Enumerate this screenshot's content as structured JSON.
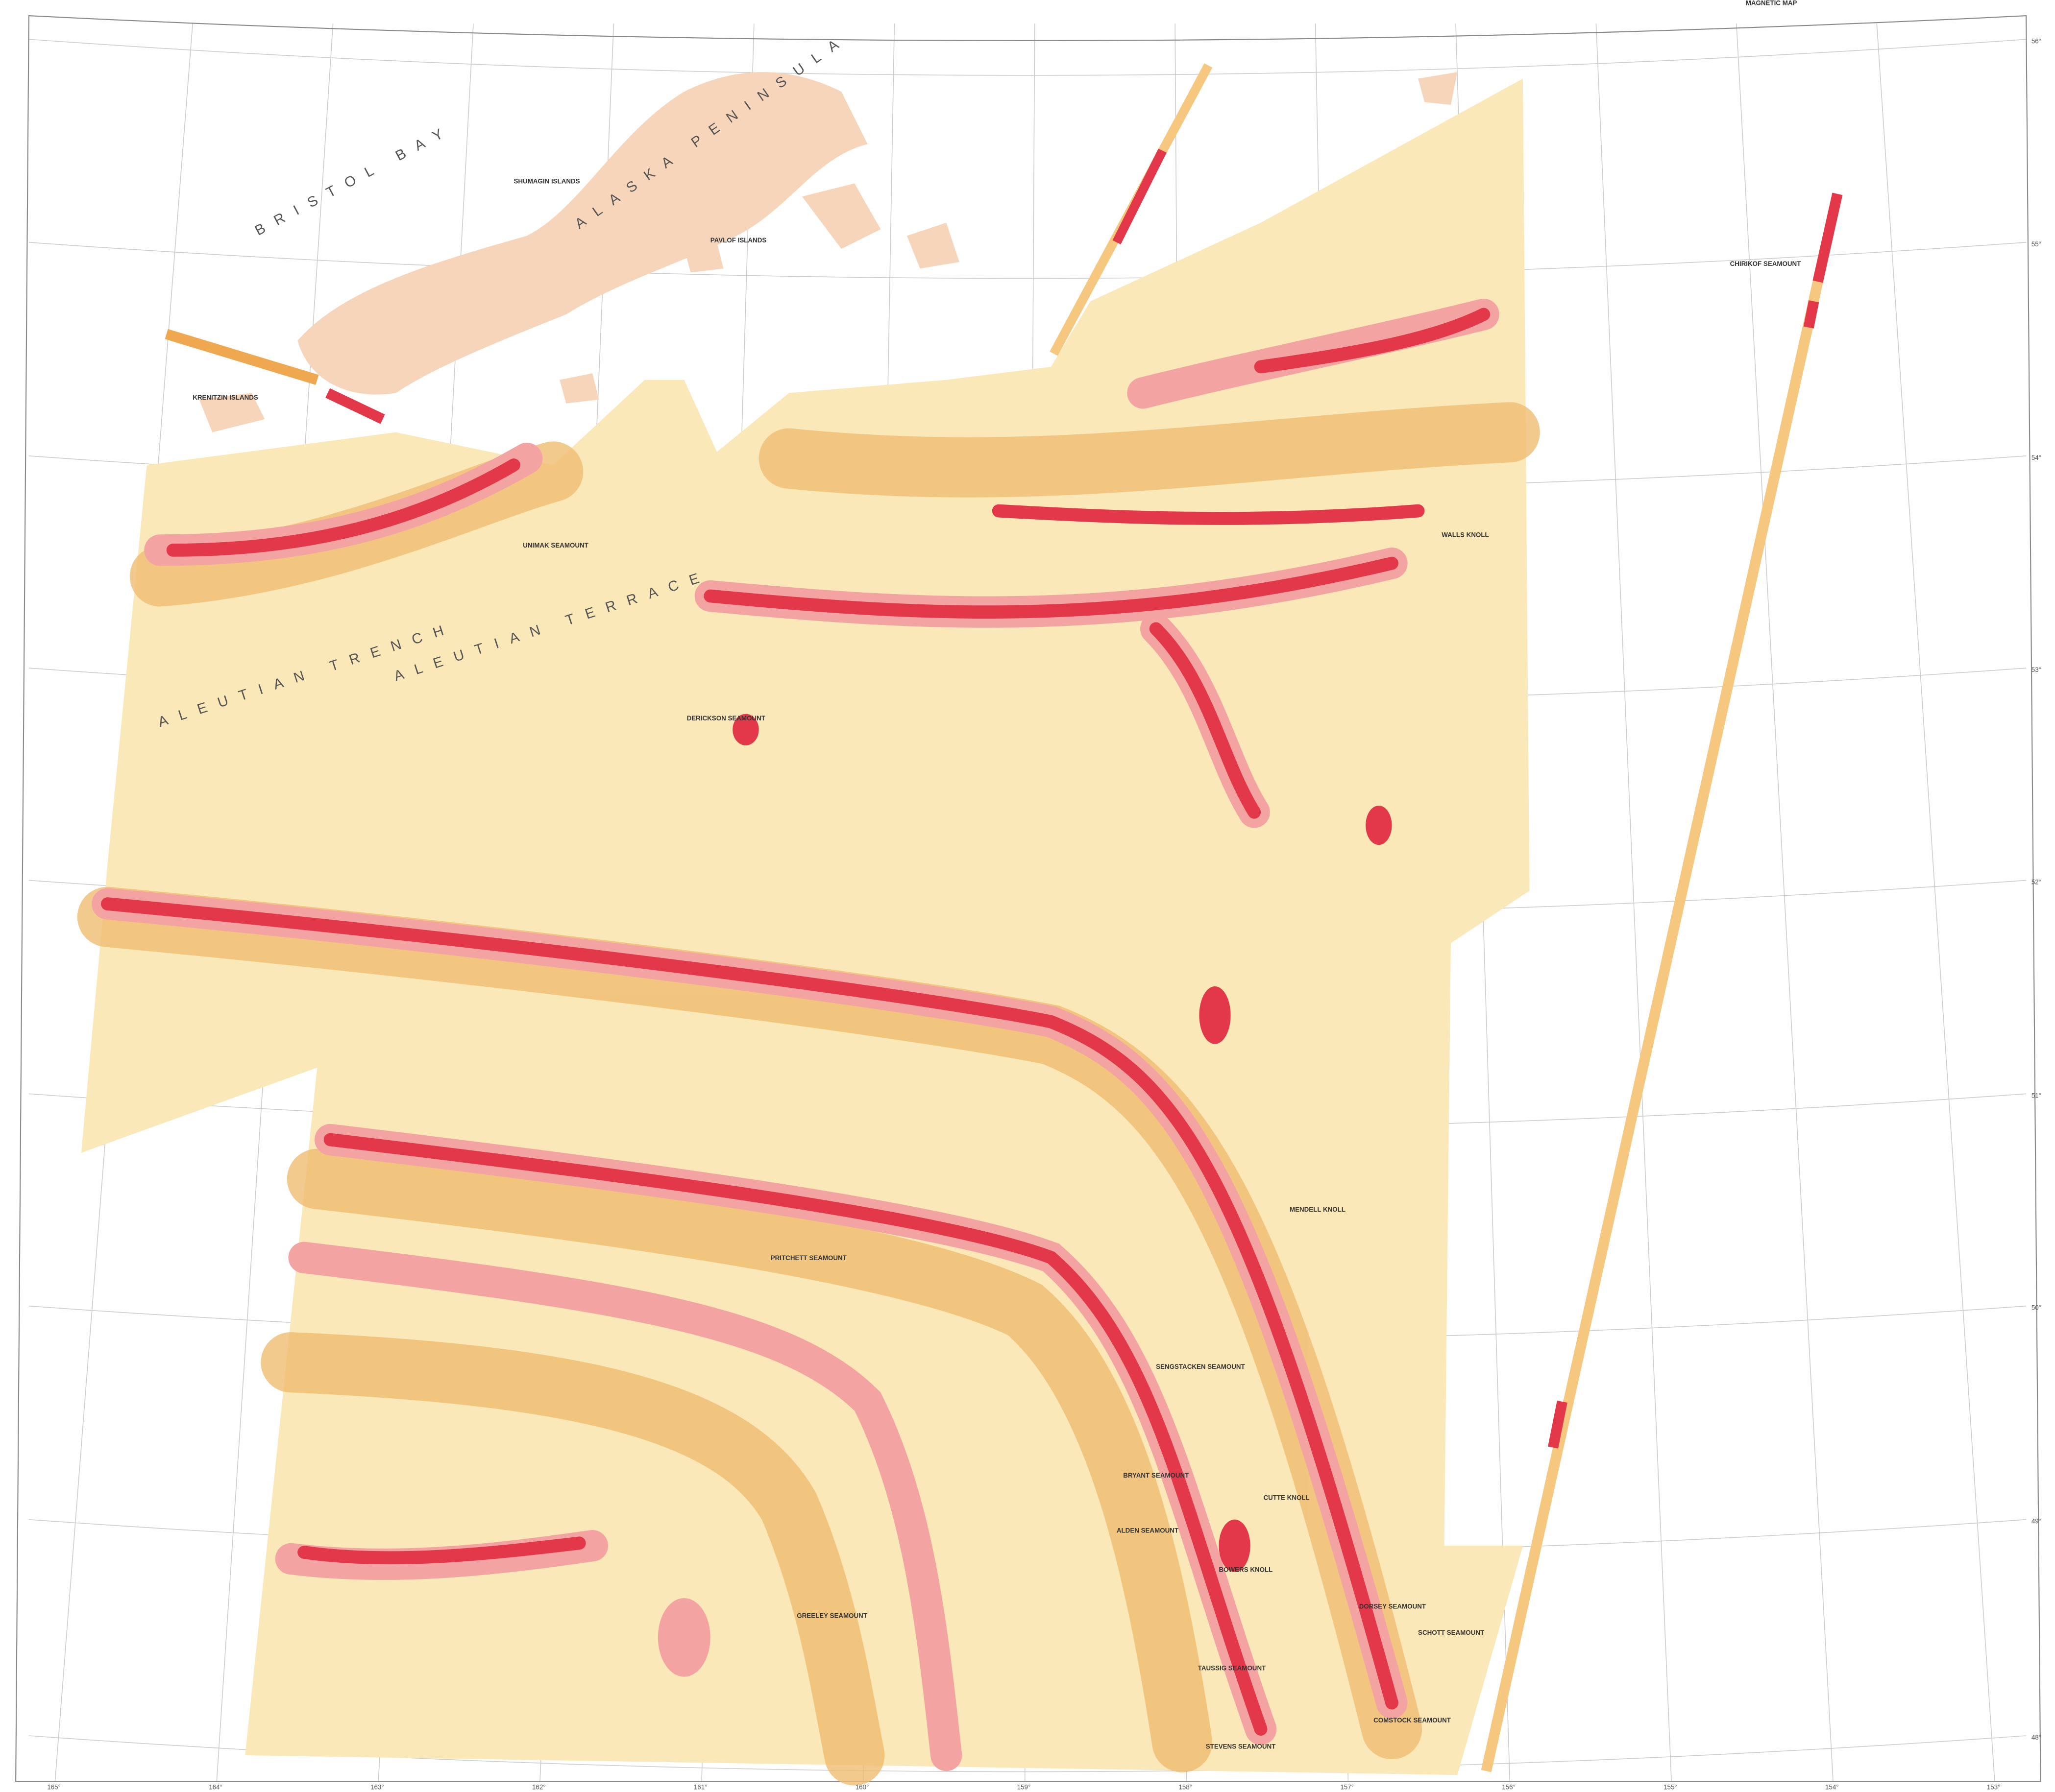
{
  "header": {
    "title": "MAGNETIC MAP"
  },
  "regions": {
    "bristol_bay": "BRISTOL BAY",
    "peninsula": "ALASKA PENINSULA",
    "terrace": "ALEUTIAN TERRACE",
    "trench": "ALEUTIAN TRENCH",
    "krenitzin": "KRENITZIN ISLANDS",
    "shumagin": "SHUMAGIN ISLANDS",
    "pavlof": "PAVLOF ISLANDS"
  },
  "seamounts": [
    "UNIMAK SEAMOUNT",
    "DERICKSON SEAMOUNT",
    "WALLS KNOLL",
    "CHIRIKOF SEAMOUNT",
    "PRITCHETT SEAMOUNT",
    "MENDELL KNOLL",
    "SENGSTACKEN SEAMOUNT",
    "BRYANT SEAMOUNT",
    "ALDEN SEAMOUNT",
    "CUTTE KNOLL",
    "BOWERS KNOLL",
    "DORSEY SEAMOUNT",
    "SCHOTT SEAMOUNT",
    "TAUSSIG SEAMOUNT",
    "STEVENS SEAMOUNT",
    "COMSTOCK SEAMOUNT",
    "GREELEY SEAMOUNT"
  ],
  "latitude_labels": [
    "56°",
    "55°",
    "54°",
    "53°",
    "52°",
    "51°",
    "50°",
    "49°",
    "48°"
  ],
  "longitude_labels": [
    "165°",
    "164°",
    "163°",
    "162°",
    "161°",
    "160°",
    "159°",
    "158°",
    "157°",
    "156°",
    "155°",
    "154°",
    "153°"
  ]
}
